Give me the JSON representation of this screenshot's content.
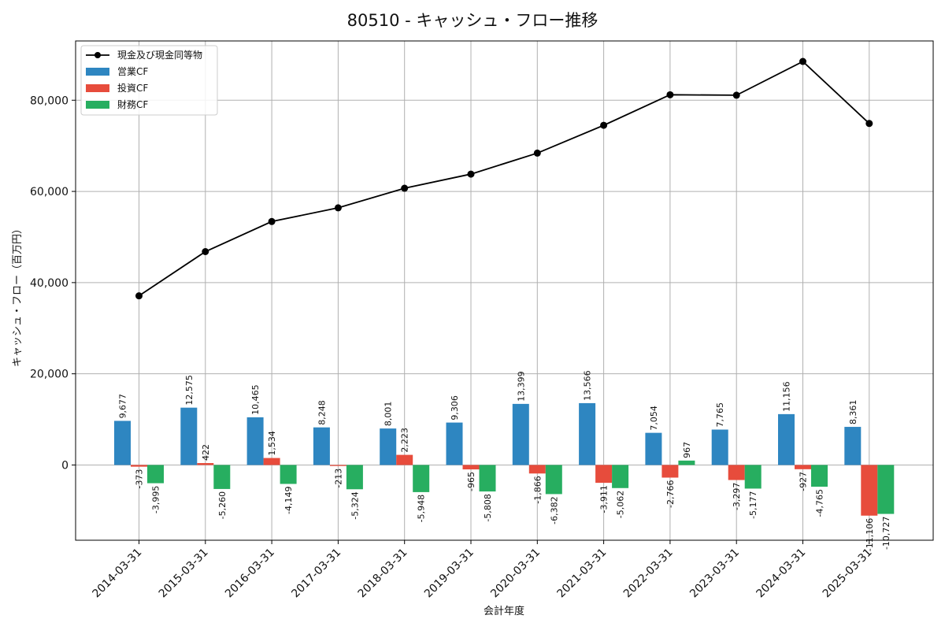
{
  "chart_data": {
    "type": "bar",
    "title": "80510 - キャッシュ・フロー推移",
    "xlabel": "会計年度",
    "ylabel": "キャッシュ・フロー（百万円）",
    "categories": [
      "2014-03-31",
      "2015-03-31",
      "2016-03-31",
      "2017-03-31",
      "2018-03-31",
      "2019-03-31",
      "2020-03-31",
      "2021-03-31",
      "2022-03-31",
      "2023-03-31",
      "2024-03-31",
      "2025-03-31"
    ],
    "ylim": [
      -16500,
      93000
    ],
    "yticks": [
      0,
      20000,
      40000,
      60000,
      80000
    ],
    "ytick_labels": [
      "0",
      "20,000",
      "40,000",
      "60,000",
      "80,000"
    ],
    "grid": true,
    "legend_position": "top-left",
    "series": [
      {
        "name": "現金及び現金同等物",
        "type": "line",
        "color": "#000000",
        "values": [
          37100,
          46800,
          53400,
          56400,
          60700,
          63800,
          68400,
          74500,
          81200,
          81100,
          88500,
          74900
        ]
      },
      {
        "name": "営業CF",
        "type": "bar",
        "color": "#2e86c1",
        "values": [
          9677,
          12575,
          10465,
          8248,
          8001,
          9306,
          13399,
          13566,
          7054,
          7765,
          11156,
          8361
        ],
        "labels": [
          "9,677",
          "12,575",
          "10,465",
          "8,248",
          "8,001",
          "9,306",
          "13,399",
          "13,566",
          "7,054",
          "7,765",
          "11,156",
          "8,361"
        ]
      },
      {
        "name": "投資CF",
        "type": "bar",
        "color": "#e74c3c",
        "values": [
          -373,
          422,
          1534,
          -213,
          2223,
          -965,
          -1866,
          -3911,
          -2766,
          -3297,
          -927,
          -11106
        ],
        "labels": [
          "-373",
          "422",
          "1,534",
          "-213",
          "2,223",
          "-965",
          "-1,866",
          "-3,911",
          "-2,766",
          "-3,297",
          "-927",
          "-11,106"
        ]
      },
      {
        "name": "財務CF",
        "type": "bar",
        "color": "#27ae60",
        "values": [
          -3995,
          -5260,
          -4149,
          -5324,
          -5948,
          -5808,
          -6382,
          -5062,
          967,
          -5177,
          -4765,
          -10727
        ],
        "labels": [
          "-3,995",
          "-5,260",
          "-4,149",
          "-5,324",
          "-5,948",
          "-5,808",
          "-6,382",
          "-5,062",
          "967",
          "-5,177",
          "-4,765",
          "-10,727"
        ]
      }
    ]
  }
}
